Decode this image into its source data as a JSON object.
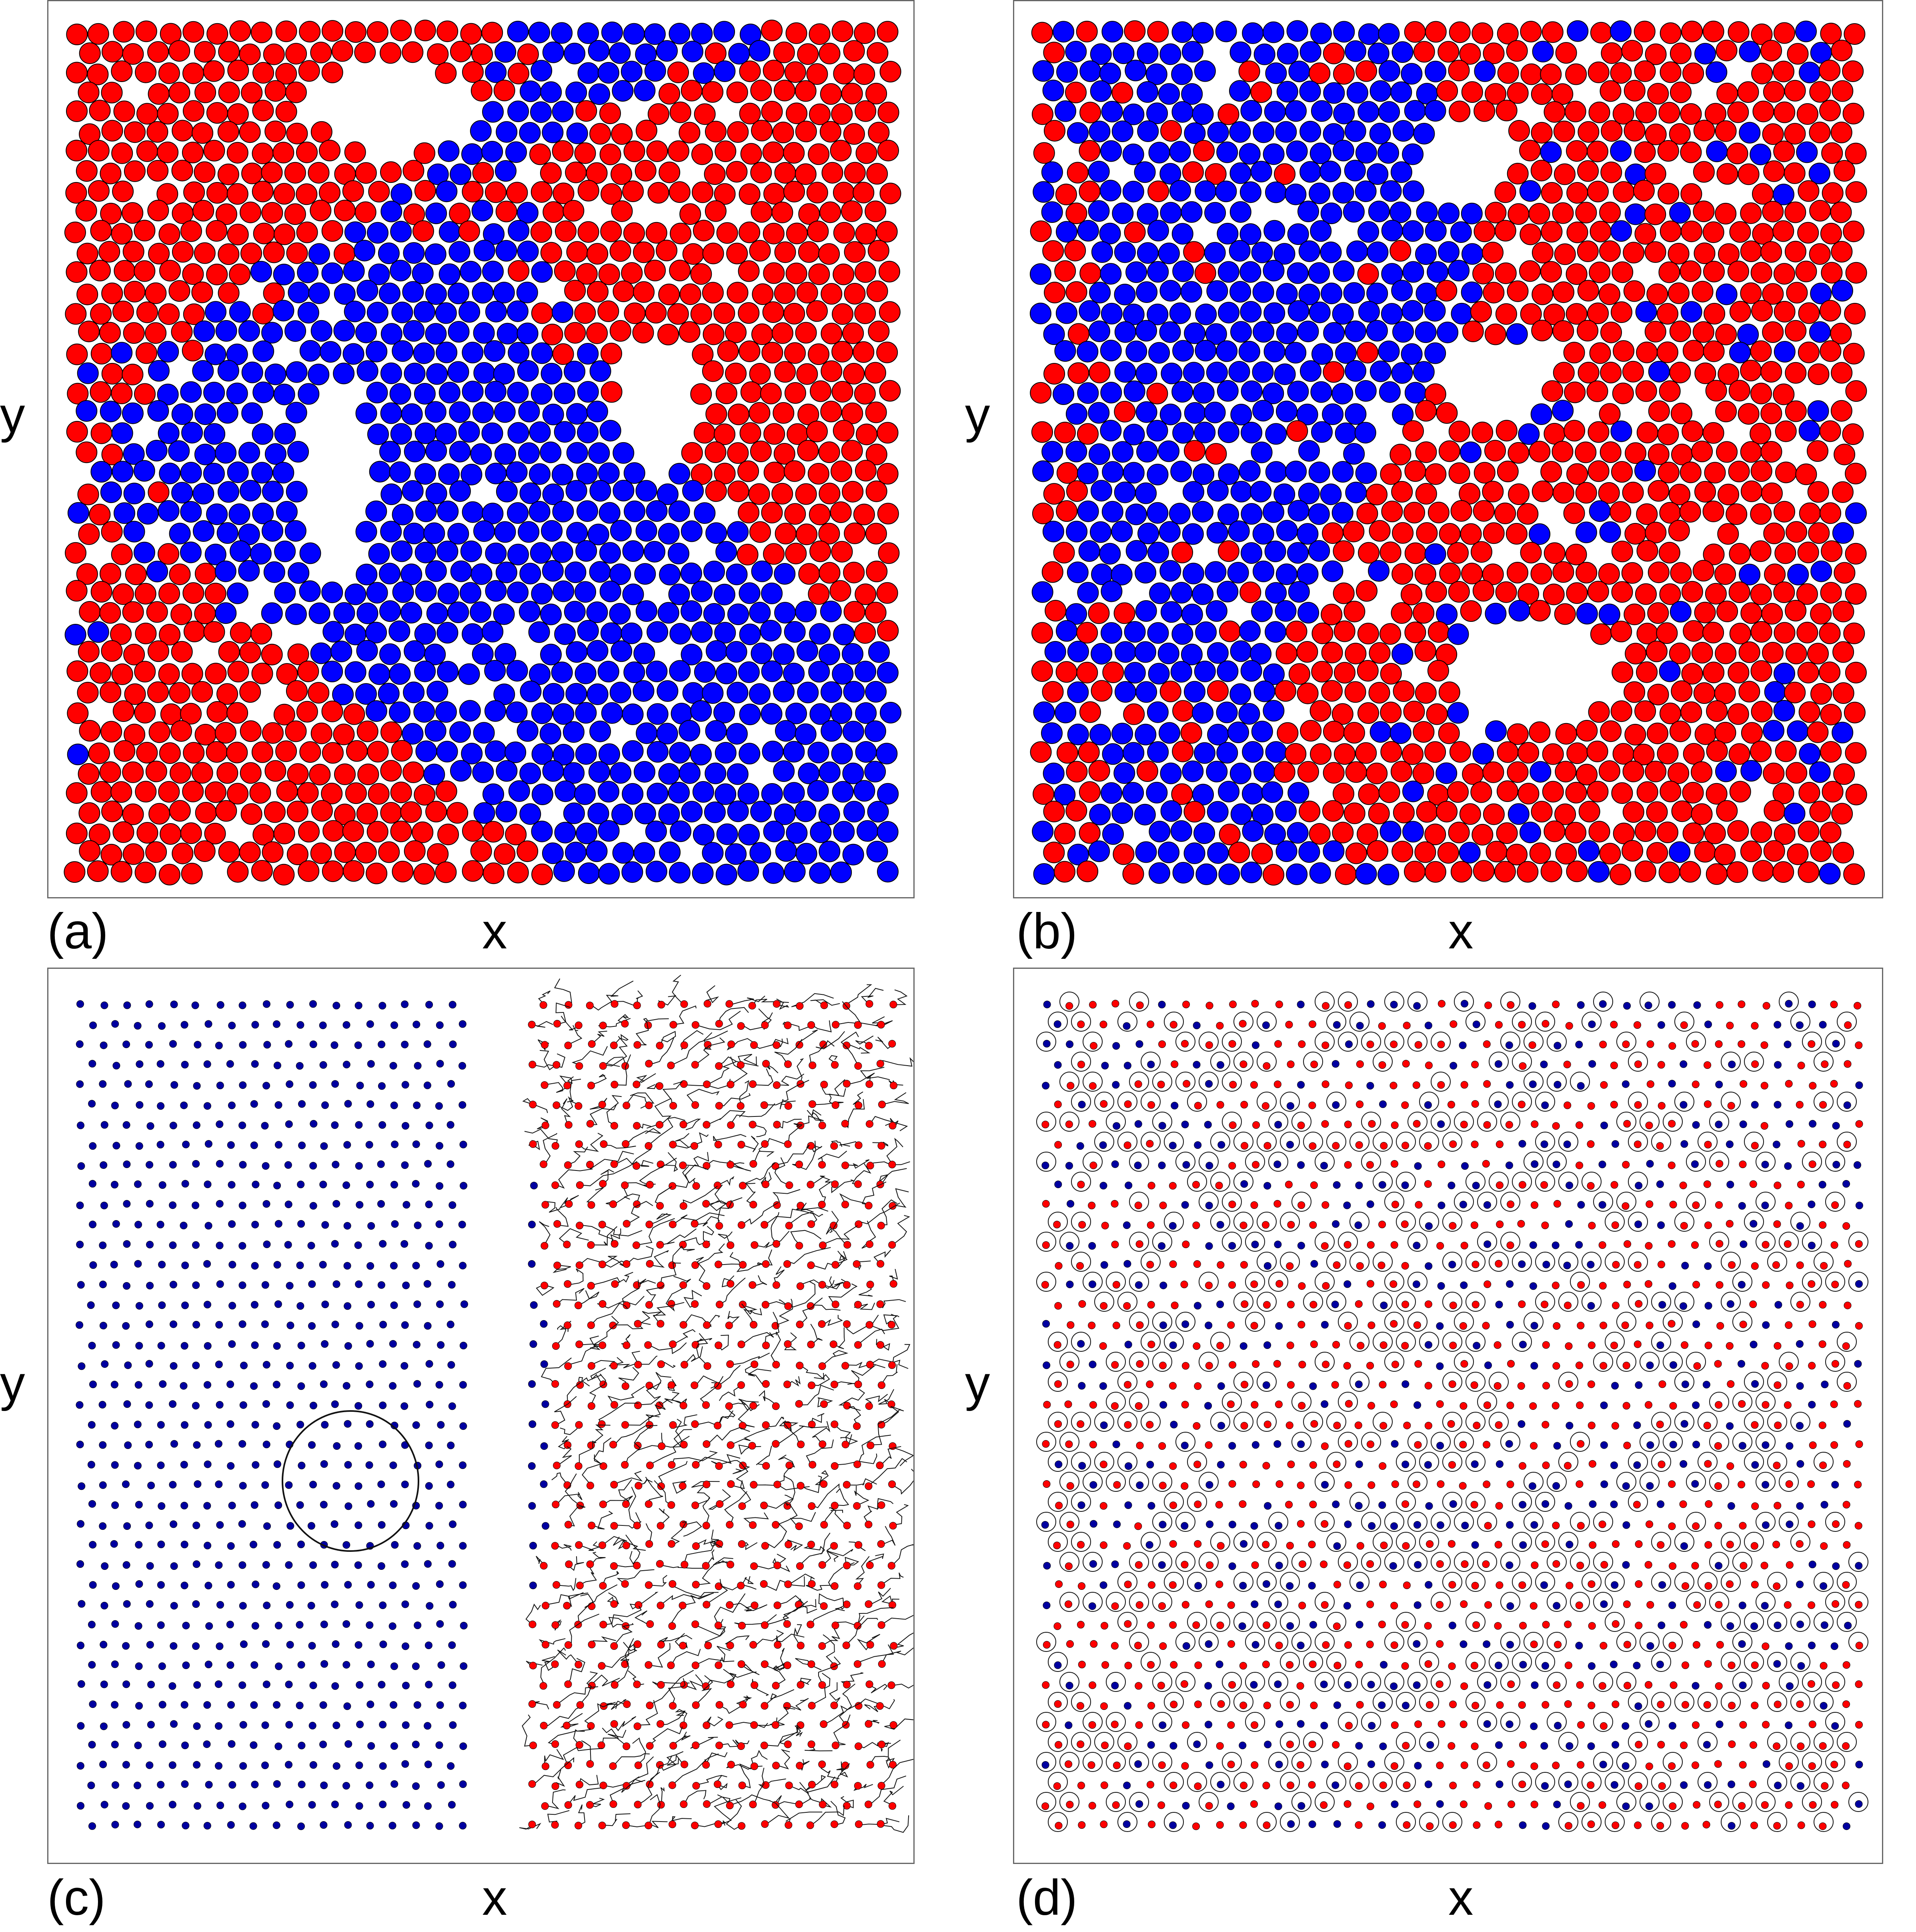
{
  "figure": {
    "panels": [
      {
        "id": "a",
        "letter": "(a)",
        "xlabel": "x",
        "ylabel": "y",
        "style": "discs",
        "pattern": "labyrinth"
      },
      {
        "id": "b",
        "letter": "(b)",
        "xlabel": "x",
        "ylabel": "y",
        "style": "discs",
        "pattern": "split"
      },
      {
        "id": "c",
        "letter": "(c)",
        "xlabel": "x",
        "ylabel": "y",
        "style": "dots-trajectories",
        "pattern": "bands"
      },
      {
        "id": "d",
        "letter": "(d)",
        "xlabel": "x",
        "ylabel": "y",
        "style": "dots-loops",
        "pattern": "mixed"
      }
    ]
  },
  "colors": {
    "species_a": "#ff0000",
    "species_b": "#0000ff",
    "small_species_b": "#0000a0",
    "trajectory": "#111111",
    "frame": "#666666"
  }
}
